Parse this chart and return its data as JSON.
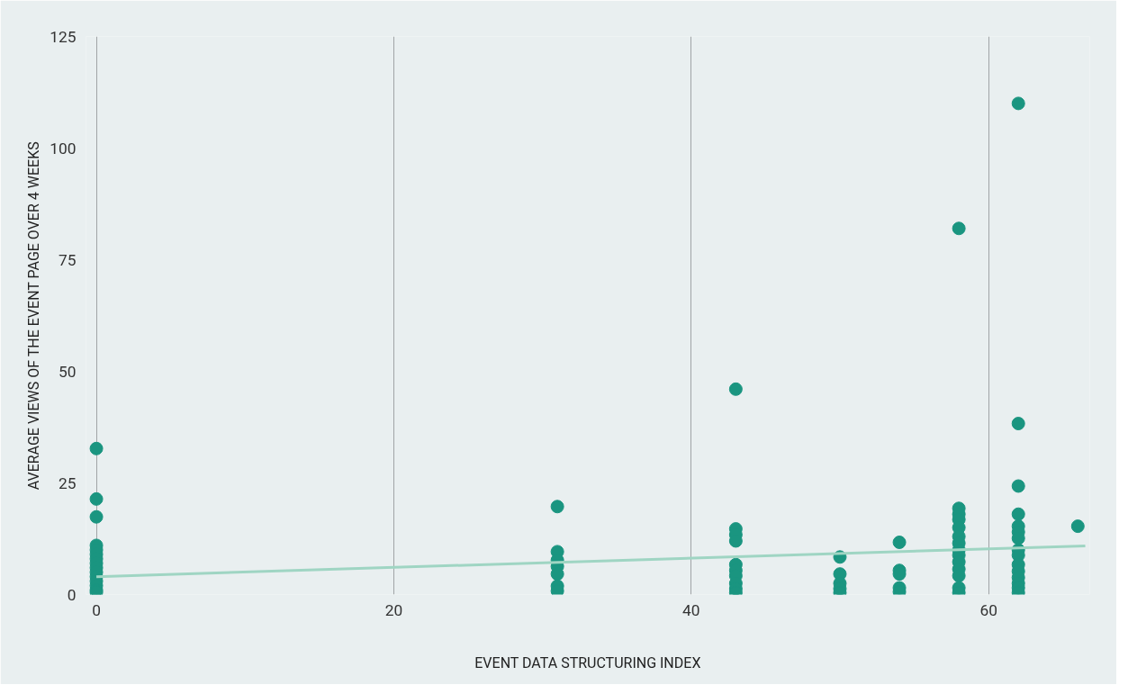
{
  "chart_data": {
    "type": "scatter",
    "xlabel": "EVENT DATA STRUCTURING INDEX",
    "ylabel": "AVERAGE VIEWS OF THE EVENT PAGE OVER 4 WEEKS",
    "xlim": [
      -0.7,
      66.8
    ],
    "ylim": [
      0,
      125
    ],
    "xticks": [
      0,
      20,
      40,
      60
    ],
    "yticks": [
      0,
      25,
      50,
      75,
      100,
      125
    ],
    "grid": "x",
    "marker": "circle",
    "series": [
      {
        "color": "#1a9580",
        "x": [
          0,
          0,
          0,
          0,
          0,
          0,
          0,
          0,
          0,
          0,
          0,
          0,
          0,
          0,
          0,
          31,
          31,
          31,
          31,
          31,
          31,
          31,
          43,
          43,
          43,
          43,
          43,
          43,
          43,
          43,
          43,
          43,
          50,
          50,
          50,
          50,
          50,
          54,
          54,
          54,
          54,
          54,
          58,
          58,
          58,
          58,
          58,
          58,
          58,
          58,
          58,
          58,
          58,
          58,
          58,
          58,
          62,
          62,
          62,
          62,
          62,
          62,
          62,
          62,
          62,
          62,
          62,
          62,
          62,
          62,
          62,
          66
        ],
        "values": [
          32.7,
          21.4,
          17.4,
          11,
          10,
          9,
          8,
          7,
          6,
          5,
          4,
          3,
          2,
          1,
          0.5,
          19.7,
          9.6,
          7.7,
          6.3,
          4.6,
          1.9,
          0.8,
          46,
          14.7,
          13.4,
          12,
          6.7,
          5.4,
          4.2,
          2.5,
          1.3,
          0.4,
          8.4,
          4.6,
          2.5,
          1.3,
          0.4,
          11.7,
          5.4,
          4.6,
          1.5,
          0.6,
          82,
          19.3,
          18,
          16.8,
          15,
          13,
          11.5,
          10,
          8.8,
          7.3,
          5.7,
          4.2,
          1.5,
          0.4,
          110,
          38.3,
          24.3,
          18,
          15.3,
          14,
          12.6,
          10,
          8.8,
          6.7,
          5.2,
          3.8,
          2.5,
          1.5,
          0.4,
          15.3
        ]
      },
      {
        "type": "line",
        "marker": "none",
        "color": "#9fd5c3",
        "x": [
          0,
          66.5
        ],
        "values": [
          4,
          10.9
        ]
      }
    ]
  }
}
